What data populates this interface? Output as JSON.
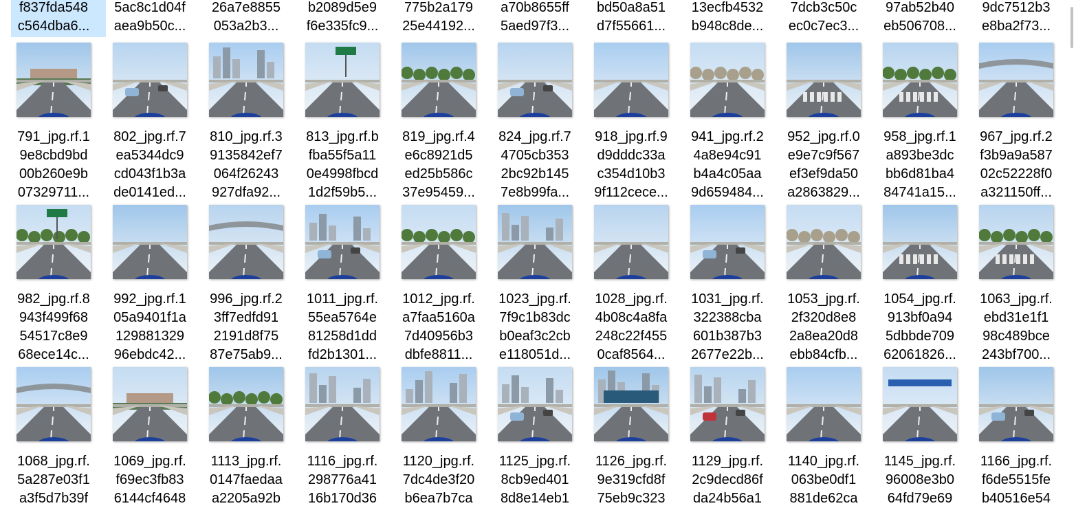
{
  "view": "large-icons",
  "selected_index": 0,
  "top_row": [
    {
      "lines": [
        "f837fda548",
        "c564dba6..."
      ]
    },
    {
      "lines": [
        "5ac8c1d04f",
        "aea9b50c..."
      ]
    },
    {
      "lines": [
        "26a7e8855",
        "053a2b3..."
      ]
    },
    {
      "lines": [
        "b2089d5e9",
        "f6e335fc9..."
      ]
    },
    {
      "lines": [
        "775b2a179",
        "25e44192..."
      ]
    },
    {
      "lines": [
        "a70b8655ff",
        "5aed97f3..."
      ]
    },
    {
      "lines": [
        "bd50a8a51",
        "d7f55661..."
      ]
    },
    {
      "lines": [
        "13ecfb4532",
        "b948c8de..."
      ]
    },
    {
      "lines": [
        "7dcb3c50c",
        "ec0c7ec3..."
      ]
    },
    {
      "lines": [
        "97ab52b40",
        "eb506708..."
      ]
    },
    {
      "lines": [
        "9dc7512b3",
        "e8ba2f73..."
      ]
    }
  ],
  "rows": [
    [
      {
        "lines": [
          "791_jpg.rf.1",
          "9e8cbd9bd",
          "00b260e9b",
          "07329711..."
        ],
        "scene": "plaza"
      },
      {
        "lines": [
          "802_jpg.rf.7",
          "ea5344dc9",
          "cd043f1b3a",
          "de0141ed..."
        ],
        "scene": "cars"
      },
      {
        "lines": [
          "810_jpg.rf.3",
          "9135842ef7",
          "064f26243",
          "927dfa92..."
        ],
        "scene": "towers"
      },
      {
        "lines": [
          "813_jpg.rf.b",
          "fba55f5a11",
          "0e4998fbcd",
          "1d2f59b5..."
        ],
        "scene": "sign"
      },
      {
        "lines": [
          "819_jpg.rf.4",
          "e6c8921d5",
          "ed25b586c",
          "37e95459..."
        ],
        "scene": "trees"
      },
      {
        "lines": [
          "824_jpg.rf.7",
          "4705cb353",
          "2bc92b145",
          "7e8b99fa..."
        ],
        "scene": "van"
      },
      {
        "lines": [
          "918_jpg.rf.9",
          "d9dddc33a",
          "c354d10b3",
          "9f112cece..."
        ],
        "scene": "road"
      },
      {
        "lines": [
          "941_jpg.rf.2",
          "4a8e94c91",
          "b4a4c05aa",
          "9d659484..."
        ],
        "scene": "bare"
      },
      {
        "lines": [
          "952_jpg.rf.0",
          "e9e7c9f567",
          "ef3ef9da50",
          "a2863829..."
        ],
        "scene": "crossing"
      },
      {
        "lines": [
          "958_jpg.rf.1",
          "a893be3dc",
          "bb6d81ba4",
          "84741a15..."
        ],
        "scene": "junction"
      },
      {
        "lines": [
          "967_jpg.rf.2",
          "f3b9a9a587",
          "02c52228f0",
          "a321150ff..."
        ],
        "scene": "bridge"
      }
    ],
    [
      {
        "lines": [
          "982_jpg.rf.8",
          "943f499f68",
          "54517c8e9",
          "68ece14c..."
        ],
        "scene": "greensign"
      },
      {
        "lines": [
          "992_jpg.rf.1",
          "05a9401f1a",
          "129881329",
          "96ebdc42..."
        ],
        "scene": "road"
      },
      {
        "lines": [
          "996_jpg.rf.2",
          "3ff7edfd91",
          "2191d8f75",
          "87e75ab9..."
        ],
        "scene": "overpass"
      },
      {
        "lines": [
          "1011_jpg.rf.",
          "55ea5764e",
          "81258d1dd",
          "fd2b1301..."
        ],
        "scene": "street"
      },
      {
        "lines": [
          "1012_jpg.rf.",
          "a7faa5160a",
          "7d40956b3",
          "dbfe8811..."
        ],
        "scene": "trees"
      },
      {
        "lines": [
          "1023_jpg.rf.",
          "7f9c1b83dc",
          "b0eaf3c2cb",
          "e118051d..."
        ],
        "scene": "towers"
      },
      {
        "lines": [
          "1028_jpg.rf.",
          "4b08c4a8fa",
          "248c22f455",
          "0caf8564..."
        ],
        "scene": "road"
      },
      {
        "lines": [
          "1031_jpg.rf.",
          "322388cba",
          "601b387b3",
          "2677e22b..."
        ],
        "scene": "cars"
      },
      {
        "lines": [
          "1053_jpg.rf.",
          "2f320d8e8",
          "2a8ea20d8",
          "ebb84cfb..."
        ],
        "scene": "bare"
      },
      {
        "lines": [
          "1054_jpg.rf.",
          "913bf0a94",
          "5dbbde709",
          "62061826..."
        ],
        "scene": "crossing"
      },
      {
        "lines": [
          "1063_jpg.rf.",
          "ebd31e1f1",
          "98c489bce",
          "243bf700..."
        ],
        "scene": "junction"
      }
    ],
    [
      {
        "lines": [
          "1068_jpg.rf.",
          "5a287e03f1",
          "a3f5d7b39f"
        ],
        "scene": "overpass"
      },
      {
        "lines": [
          "1069_jpg.rf.",
          "f69ec3fb83",
          "6144cf4648"
        ],
        "scene": "plaza"
      },
      {
        "lines": [
          "1113_jpg.rf.",
          "0147faedaa",
          "a2205a92b"
        ],
        "scene": "trees"
      },
      {
        "lines": [
          "1116_jpg.rf.",
          "298776a41",
          "16b170d36"
        ],
        "scene": "towers"
      },
      {
        "lines": [
          "1120_jpg.rf.",
          "7dc4de3f20",
          "b6ea7b7ca"
        ],
        "scene": "towers"
      },
      {
        "lines": [
          "1125_jpg.rf.",
          "8cb9ed401",
          "8d8e14eb1"
        ],
        "scene": "street"
      },
      {
        "lines": [
          "1126_jpg.rf.",
          "9e319cfd8f",
          "75eb9c323"
        ],
        "scene": "billboard"
      },
      {
        "lines": [
          "1129_jpg.rf.",
          "2c9decd86f",
          "da24b56a1"
        ],
        "scene": "bus"
      },
      {
        "lines": [
          "1140_jpg.rf.",
          "063be0df1",
          "881de62ca"
        ],
        "scene": "road"
      },
      {
        "lines": [
          "1145_jpg.rf.",
          "96008e3b0",
          "64fd79e69"
        ],
        "scene": "bluesign"
      },
      {
        "lines": [
          "1166_jpg.rf.",
          "f6de5515fe",
          "b40516e54"
        ],
        "scene": "cars"
      }
    ]
  ]
}
